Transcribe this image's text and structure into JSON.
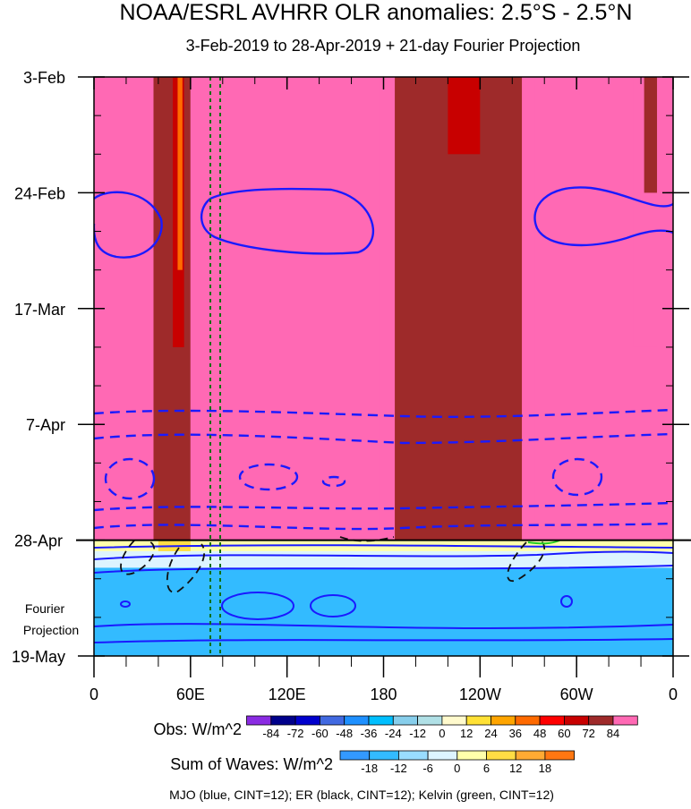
{
  "chart_data": {
    "type": "heatmap",
    "title": "NOAA/ESRL AVHRR OLR anomalies: 2.5°S - 2.5°N",
    "subtitle": "3-Feb-2019 to 28-Apr-2019 + 21-day Fourier Projection",
    "x_ticks": [
      {
        "lon": 0,
        "label": "0"
      },
      {
        "lon": 60,
        "label": "60E"
      },
      {
        "lon": 120,
        "label": "120E"
      },
      {
        "lon": 180,
        "label": "180"
      },
      {
        "lon": 240,
        "label": "120W"
      },
      {
        "lon": 300,
        "label": "60W"
      },
      {
        "lon": 360,
        "label": "0"
      }
    ],
    "xlim": [
      0,
      360
    ],
    "y_ticks": [
      {
        "date": "2019-02-03",
        "label": "3-Feb"
      },
      {
        "date": "2019-02-24",
        "label": "24-Feb"
      },
      {
        "date": "2019-03-17",
        "label": "17-Mar"
      },
      {
        "date": "2019-04-07",
        "label": "7-Apr"
      },
      {
        "date": "2019-04-28",
        "label": "28-Apr"
      },
      {
        "date": "2019-05-19",
        "label": "19-May"
      }
    ],
    "ylim": [
      "2019-02-03",
      "2019-05-19"
    ],
    "projection_label": [
      "Fourier",
      "Projection"
    ],
    "obs_legend": {
      "title": "Obs: W/m^2",
      "levels": [
        "-84",
        "-72",
        "-60",
        "-48",
        "-36",
        "-24",
        "-12",
        "0",
        "12",
        "24",
        "36",
        "48",
        "60",
        "72",
        "84"
      ],
      "colors": [
        "#8a2be2",
        "#00008b",
        "#0000cd",
        "#4169e1",
        "#1e90ff",
        "#00bfff",
        "#87ceeb",
        "#b0e0e6",
        "#fffacd",
        "#ffe135",
        "#ffa500",
        "#ff6a00",
        "#ff0000",
        "#c80000",
        "#9e2a2a",
        "#ff69b4"
      ]
    },
    "waves_legend": {
      "title": "Sum of Waves: W/m^2",
      "levels": [
        "-18",
        "-12",
        "-6",
        "0",
        "6",
        "12",
        "18"
      ],
      "colors": [
        "#3399ff",
        "#33bbff",
        "#99ddff",
        "#ddf4ff",
        "#ffffaa",
        "#ffdd44",
        "#ffaa33",
        "#ff7711"
      ]
    },
    "footer": "MJO (blue, CINT=12); ER (black, CINT=12); Kelvin (green, CINT=12)",
    "obs_bands": [
      {
        "lon": [
          37,
          60
        ],
        "date": [
          "2019-02-03",
          "2019-04-28"
        ],
        "level": "72"
      },
      {
        "lon": [
          49,
          56
        ],
        "date": [
          "2019-02-03",
          "2019-03-24"
        ],
        "level": "60"
      },
      {
        "lon": [
          52,
          55
        ],
        "date": [
          "2019-02-03",
          "2019-03-10"
        ],
        "level": "36"
      },
      {
        "lon": [
          60,
          70
        ],
        "date": [
          "2019-02-03",
          "2019-04-28"
        ],
        "level": "84"
      },
      {
        "lon": [
          177,
          187
        ],
        "date": [
          "2019-02-03",
          "2019-04-28"
        ],
        "level": "84"
      },
      {
        "lon": [
          187,
          268
        ],
        "date": [
          "2019-02-03",
          "2019-04-28"
        ],
        "level": "72"
      },
      {
        "lon": [
          220,
          240
        ],
        "date": [
          "2019-02-03",
          "2019-02-17"
        ],
        "level": "60"
      },
      {
        "lon": [
          266,
          274
        ],
        "date": [
          "2019-02-03",
          "2019-04-28"
        ],
        "level": "84"
      },
      {
        "lon": [
          335,
          350
        ],
        "date": [
          "2019-02-03",
          "2019-03-24"
        ],
        "level": "84"
      },
      {
        "lon": [
          342,
          350
        ],
        "date": [
          "2019-02-03",
          "2019-02-24"
        ],
        "level": "72"
      }
    ],
    "projection_bands": [
      {
        "lon": [
          0,
          360
        ],
        "date": [
          "2019-04-28",
          "2019-04-30"
        ],
        "level": "0"
      },
      {
        "lon": [
          0,
          360
        ],
        "date": [
          "2019-04-30",
          "2019-05-03"
        ],
        "level": "-6"
      },
      {
        "lon": [
          0,
          360
        ],
        "date": [
          "2019-05-03",
          "2019-05-19"
        ],
        "level": "-18"
      },
      {
        "lon": [
          40,
          60
        ],
        "date": [
          "2019-04-28",
          "2019-04-30"
        ],
        "level": "6"
      }
    ]
  }
}
